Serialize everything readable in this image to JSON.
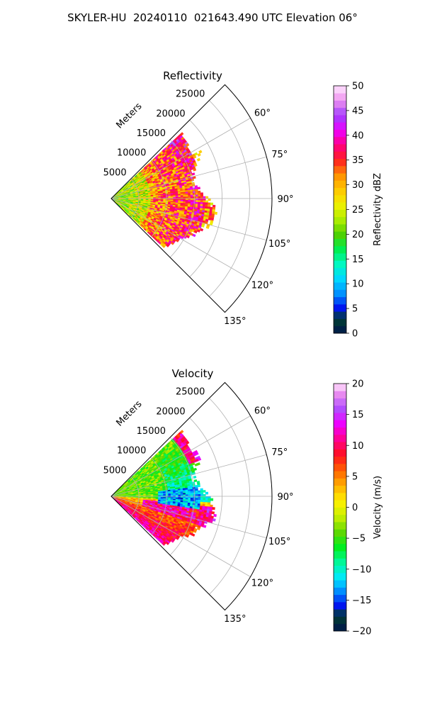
{
  "figure": {
    "title": "SKYLER-HU  20240110  021643.490 UTC Elevation 06°"
  },
  "chart_data": [
    {
      "type": "heatmap",
      "projection": "polar-sector",
      "title": "Reflectivity",
      "variable": "reflectivity",
      "range_label": "Meters",
      "range_ticks": [
        5000,
        10000,
        15000,
        20000,
        25000
      ],
      "range_max": 25000,
      "azimuth_range": [
        45,
        135
      ],
      "azimuth_ticks": [
        60,
        75,
        90,
        105,
        120,
        135
      ],
      "azimuth_tick_labels": [
        "60°",
        "75°",
        "90°",
        "105°",
        "120°",
        "135°"
      ],
      "grid": true,
      "colorbar": {
        "label": "Reflectivity dBZ",
        "min": 0,
        "max": 50,
        "ticks": [
          0,
          5,
          10,
          15,
          20,
          25,
          30,
          35,
          40,
          45,
          50
        ],
        "tick_labels": [
          "0",
          "5",
          "10",
          "15",
          "20",
          "25",
          "30",
          "35",
          "40",
          "45",
          "50"
        ],
        "stops": [
          {
            "v": 0,
            "c": "#00154d"
          },
          {
            "v": 3,
            "c": "#004030"
          },
          {
            "v": 5,
            "c": "#0010ee"
          },
          {
            "v": 8,
            "c": "#0090ff"
          },
          {
            "v": 11,
            "c": "#00d8ff"
          },
          {
            "v": 14,
            "c": "#00f8c0"
          },
          {
            "v": 17,
            "c": "#00ee50"
          },
          {
            "v": 20,
            "c": "#50d000"
          },
          {
            "v": 23,
            "c": "#b0ee00"
          },
          {
            "v": 26,
            "c": "#f0f000"
          },
          {
            "v": 29,
            "c": "#ffc800"
          },
          {
            "v": 32,
            "c": "#ff9000"
          },
          {
            "v": 35,
            "c": "#ff2020"
          },
          {
            "v": 38,
            "c": "#ff0080"
          },
          {
            "v": 41,
            "c": "#ee00ff"
          },
          {
            "v": 44,
            "c": "#a040ff"
          },
          {
            "v": 47,
            "c": "#ee90ee"
          },
          {
            "v": 50,
            "c": "#ffe8ff"
          }
        ]
      },
      "colors": {
        "core": "#ff2060",
        "core_dense": "#f010d0",
        "mid": "#ffa020",
        "edge": "#50e000",
        "fringe": "#00f0a0"
      }
    },
    {
      "type": "heatmap",
      "projection": "polar-sector",
      "title": "Velocity",
      "variable": "velocity",
      "range_label": "Meters",
      "range_ticks": [
        5000,
        10000,
        15000,
        20000,
        25000
      ],
      "range_max": 25000,
      "azimuth_range": [
        45,
        135
      ],
      "azimuth_ticks": [
        60,
        75,
        90,
        105,
        120,
        135
      ],
      "azimuth_tick_labels": [
        "60°",
        "75°",
        "90°",
        "105°",
        "120°",
        "135°"
      ],
      "grid": true,
      "colorbar": {
        "label": "Velocity (m/s)",
        "min": -20,
        "max": 20,
        "ticks": [
          -20,
          -15,
          -10,
          -5,
          0,
          5,
          10,
          15,
          20
        ],
        "tick_labels": [
          "−20",
          "−15",
          "−10",
          "−5",
          "0",
          "5",
          "10",
          "15",
          "20"
        ],
        "stops": [
          {
            "v": -20,
            "c": "#00154d"
          },
          {
            "v": -17.5,
            "c": "#004030"
          },
          {
            "v": -16,
            "c": "#0010ee"
          },
          {
            "v": -13.5,
            "c": "#0090ff"
          },
          {
            "v": -11.5,
            "c": "#00e8ff"
          },
          {
            "v": -9,
            "c": "#00f8a0"
          },
          {
            "v": -6.5,
            "c": "#00ee20"
          },
          {
            "v": -4,
            "c": "#60d800"
          },
          {
            "v": -1.5,
            "c": "#c8f000"
          },
          {
            "v": 1,
            "c": "#fff000"
          },
          {
            "v": 3.5,
            "c": "#ffb000"
          },
          {
            "v": 6,
            "c": "#ff6000"
          },
          {
            "v": 8.5,
            "c": "#ff1020"
          },
          {
            "v": 11,
            "c": "#ff0090"
          },
          {
            "v": 13.5,
            "c": "#ee00ff"
          },
          {
            "v": 16,
            "c": "#b050ff"
          },
          {
            "v": 18.5,
            "c": "#ee90ee"
          },
          {
            "v": 20,
            "c": "#ffe8ff"
          }
        ]
      },
      "colors": {
        "inbound": "#70e000",
        "strong_inbound": "#00eef0",
        "outbound": "#ffd000",
        "strong_outbound": "#ff10a0"
      }
    }
  ]
}
